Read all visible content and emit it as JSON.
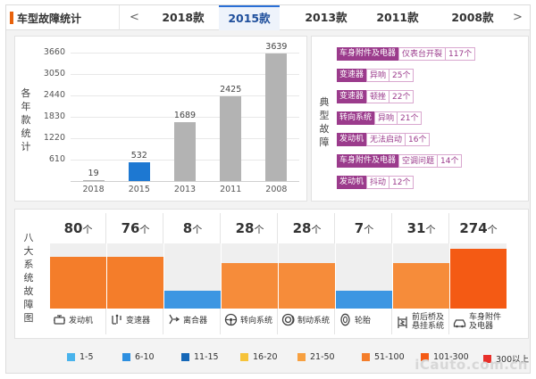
{
  "header": {
    "title": "车型故障统计",
    "prev_arrow": "<",
    "next_arrow": ">",
    "tabs": [
      "2018款",
      "2015款",
      "2013款",
      "2011款",
      "2008款"
    ],
    "active_tab": "2015款"
  },
  "chart_panel": {
    "ylabel": "各年款统计",
    "chart_data": {
      "type": "bar",
      "categories": [
        "2018",
        "2015",
        "2013",
        "2011",
        "2008"
      ],
      "values": [
        19,
        532,
        1689,
        2425,
        3639
      ],
      "yticks": [
        "3660",
        "3050",
        "2440",
        "1830",
        "1220",
        "610"
      ],
      "ylim": [
        0,
        3660
      ],
      "highlight": "2015",
      "colors": {
        "default": "#b3b3b3",
        "highlight": "#1d78d2"
      }
    }
  },
  "typical_faults": {
    "label": "典型故障",
    "items": [
      {
        "system": "车身附件及电器",
        "phenomenon": "仪表台开裂",
        "count": "117个"
      },
      {
        "system": "变速器",
        "phenomenon": "异响",
        "count": "25个"
      },
      {
        "system": "变速器",
        "phenomenon": "顿挫",
        "count": "22个"
      },
      {
        "system": "转向系统",
        "phenomenon": "异响",
        "count": "21个"
      },
      {
        "system": "发动机",
        "phenomenon": "无法启动",
        "count": "16个"
      },
      {
        "system": "车身附件及电器",
        "phenomenon": "空调问题",
        "count": "14个"
      },
      {
        "system": "发动机",
        "phenomenon": "抖动",
        "count": "12个"
      }
    ]
  },
  "fault_map": {
    "label": "八大系统故障图",
    "unit": "个",
    "systems": [
      {
        "name": "发动机",
        "count": "80",
        "icon": "engine-icon",
        "level": 0.8,
        "color": "#f47d2a"
      },
      {
        "name": "变速器",
        "count": "76",
        "icon": "gear-shift-icon",
        "level": 0.8,
        "color": "#f47d2a"
      },
      {
        "name": "离合器",
        "count": "8",
        "icon": "clutch-icon",
        "level": 0.27,
        "color": "#3d96e2"
      },
      {
        "name": "转向系统",
        "count": "28",
        "icon": "steering-wheel-icon",
        "level": 0.7,
        "color": "#f68c3a"
      },
      {
        "name": "制动系统",
        "count": "28",
        "icon": "brake-icon",
        "level": 0.7,
        "color": "#f68c3a"
      },
      {
        "name": "轮胎",
        "count": "7",
        "icon": "tire-icon",
        "level": 0.27,
        "color": "#3d96e2"
      },
      {
        "name": "前后桥及悬挂系统",
        "count": "31",
        "icon": "suspension-icon",
        "level": 0.7,
        "color": "#f68c3a"
      },
      {
        "name": "车身附件及电器",
        "count": "274",
        "icon": "car-body-icon",
        "level": 0.92,
        "color": "#f45a14"
      }
    ]
  },
  "legend": [
    {
      "label": "1-5",
      "color": "#49b3ec"
    },
    {
      "label": "6-10",
      "color": "#2d8fe0"
    },
    {
      "label": "11-15",
      "color": "#1567b7"
    },
    {
      "label": "16-20",
      "color": "#f6c33a"
    },
    {
      "label": "21-50",
      "color": "#f7a040"
    },
    {
      "label": "51-100",
      "color": "#f47d2a"
    },
    {
      "label": "101-300",
      "color": "#f45a14"
    },
    {
      "label": "300以上",
      "color": "#e8302a"
    }
  ],
  "watermark": "iCauto.com.cn"
}
